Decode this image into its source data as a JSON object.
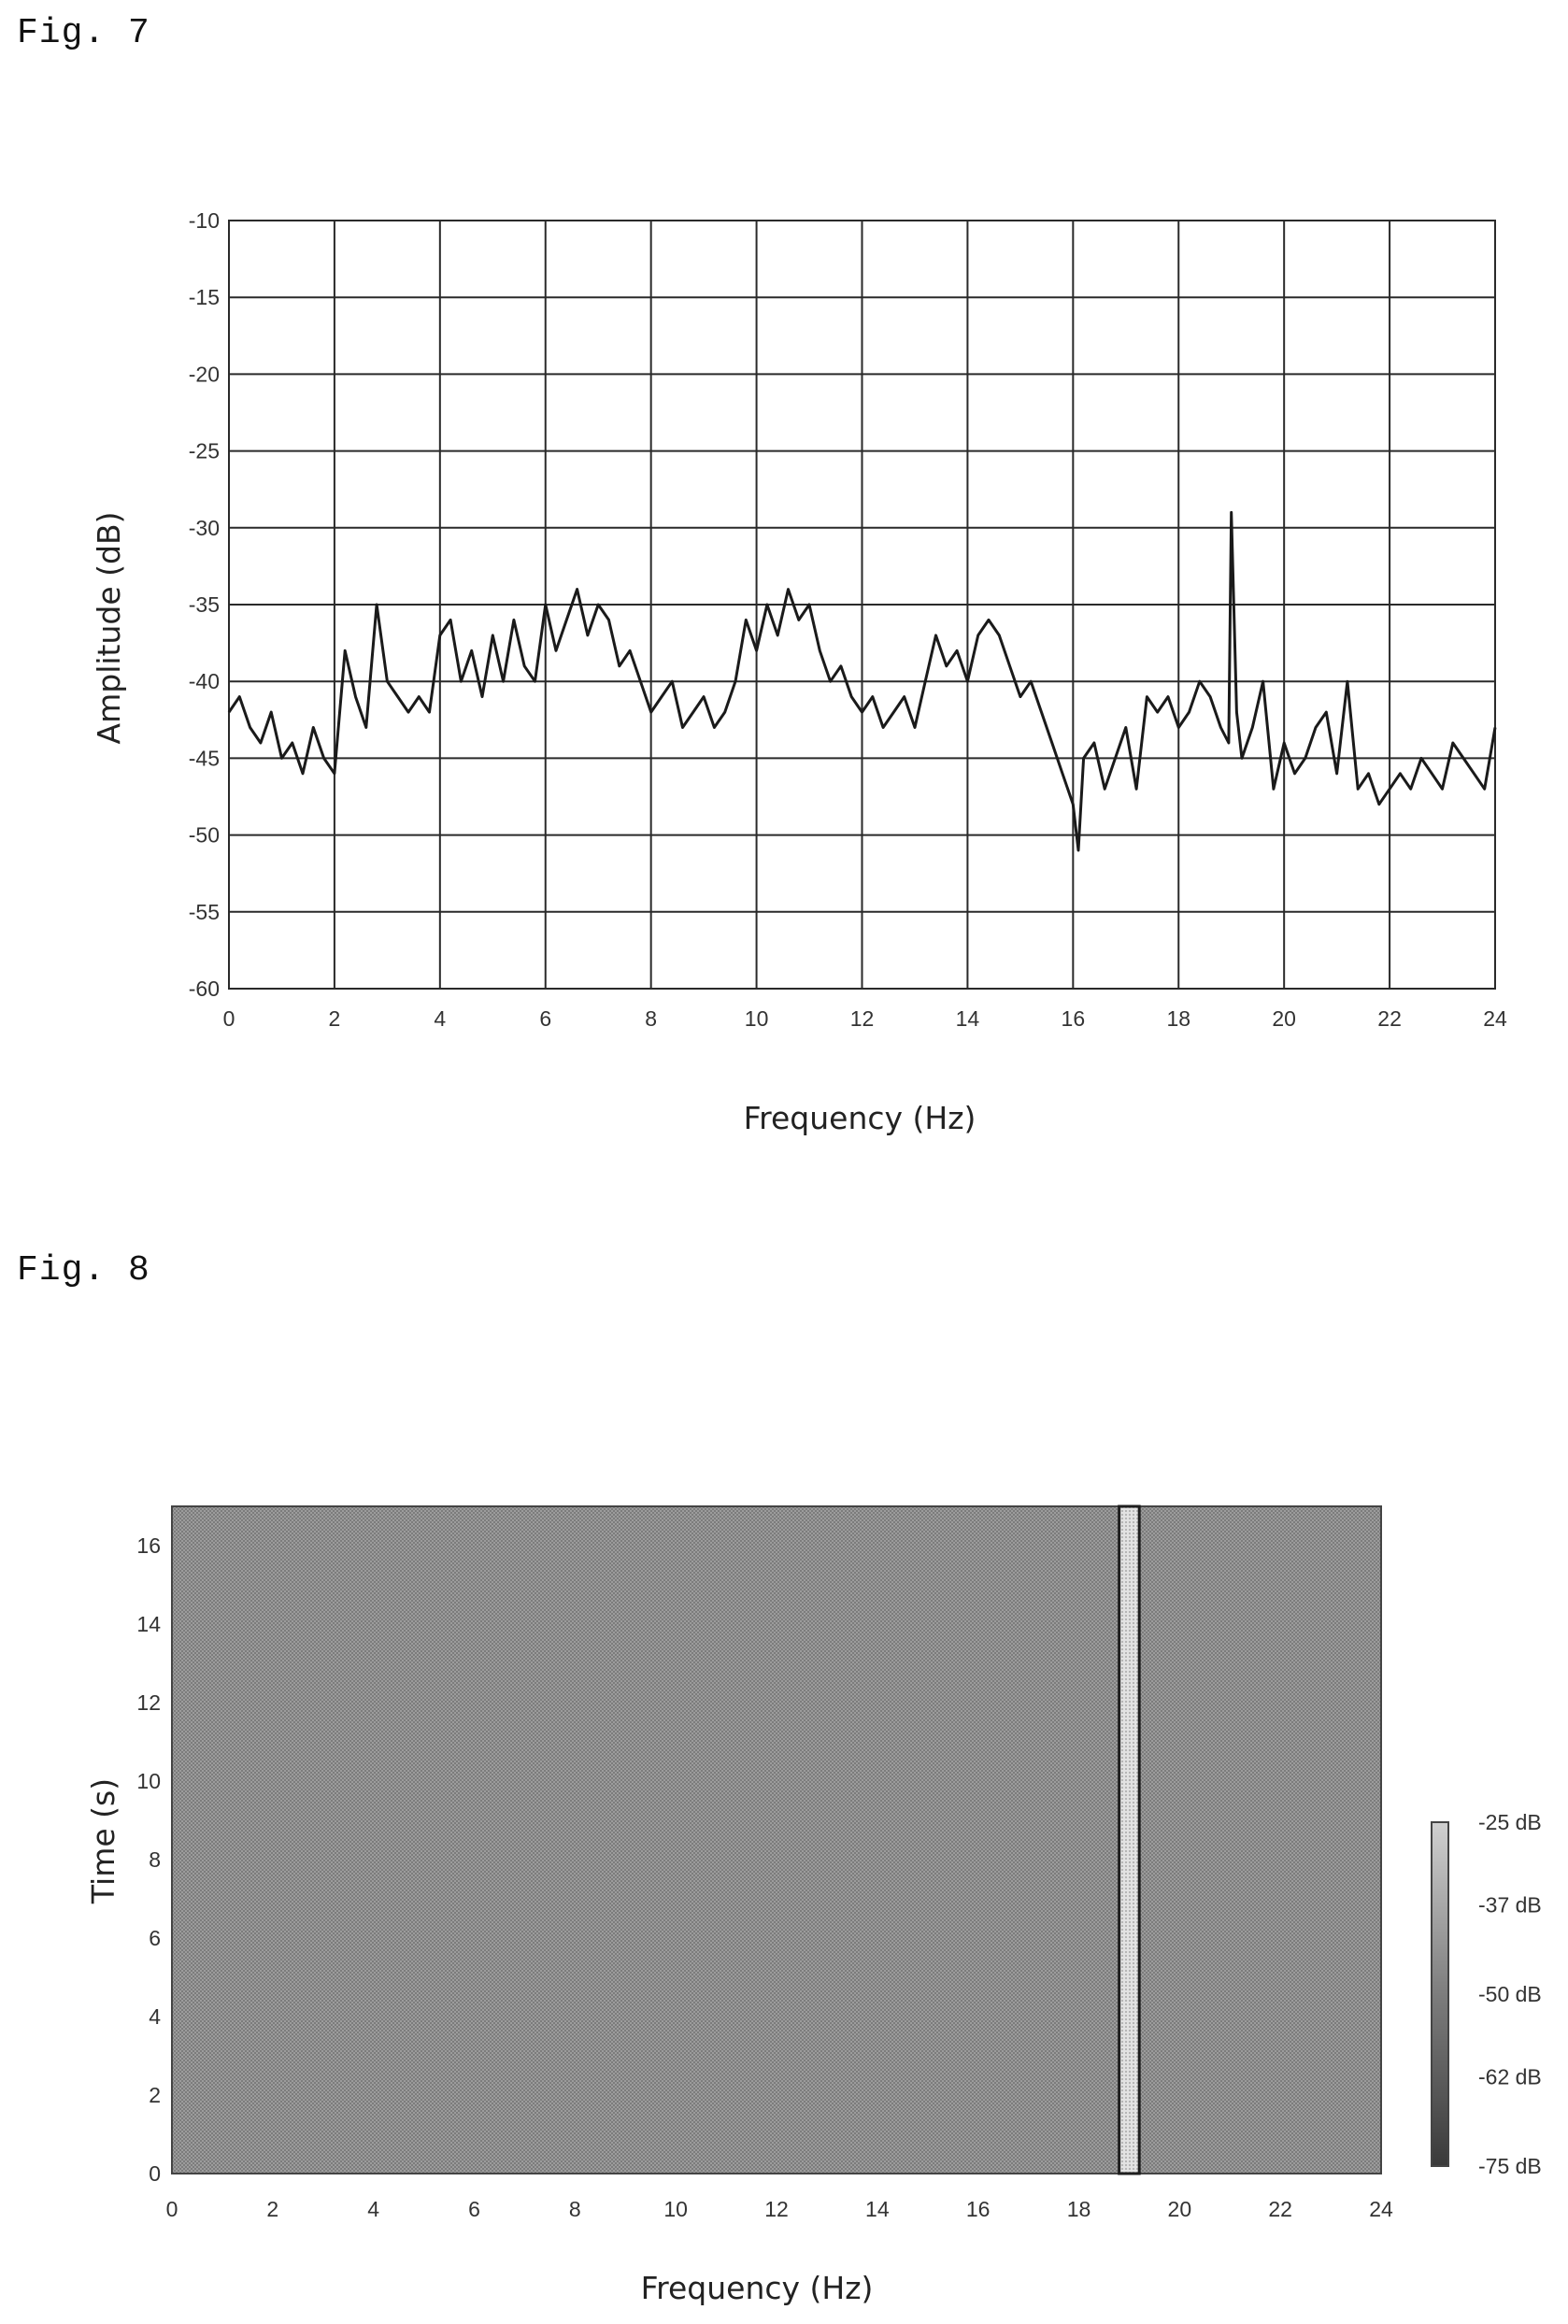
{
  "figures": {
    "fig7_label": "Fig. 7",
    "fig8_label": "Fig. 8"
  },
  "chart_data": [
    {
      "type": "line",
      "figure": "Fig. 7",
      "xlabel": "Frequency (Hz)",
      "ylabel": "Amplitude (dB)",
      "xlim": [
        0,
        24
      ],
      "ylim": [
        -60,
        -10
      ],
      "x_ticks": [
        0,
        2,
        4,
        6,
        8,
        10,
        12,
        14,
        16,
        18,
        20,
        22,
        24
      ],
      "y_ticks": [
        -10,
        -15,
        -20,
        -25,
        -30,
        -35,
        -40,
        -45,
        -50,
        -55,
        -60
      ],
      "grid": true,
      "line_color": "#1a1a1a",
      "series": [
        {
          "x": [
            0,
            0.2,
            0.4,
            0.6,
            0.8,
            1.0,
            1.2,
            1.4,
            1.6,
            1.8,
            2.0,
            2.2,
            2.4,
            2.6,
            2.8,
            3.0,
            3.2,
            3.4,
            3.6,
            3.8,
            4.0,
            4.2,
            4.4,
            4.6,
            4.8,
            5.0,
            5.2,
            5.4,
            5.6,
            5.8,
            6.0,
            6.2,
            6.4,
            6.6,
            6.8,
            7.0,
            7.2,
            7.4,
            7.6,
            7.8,
            8.0,
            8.2,
            8.4,
            8.6,
            8.8,
            9.0,
            9.2,
            9.4,
            9.6,
            9.8,
            10.0,
            10.2,
            10.4,
            10.6,
            10.8,
            11.0,
            11.2,
            11.4,
            11.6,
            11.8,
            12.0,
            12.2,
            12.4,
            12.6,
            12.8,
            13.0,
            13.2,
            13.4,
            13.6,
            13.8,
            14.0,
            14.2,
            14.4,
            14.6,
            14.8,
            15.0,
            15.2,
            15.4,
            15.6,
            15.8,
            16.0,
            16.1,
            16.2,
            16.4,
            16.6,
            16.8,
            17.0,
            17.2,
            17.4,
            17.6,
            17.8,
            18.0,
            18.2,
            18.4,
            18.6,
            18.8,
            18.95,
            19.0,
            19.1,
            19.2,
            19.4,
            19.6,
            19.8,
            20.0,
            20.2,
            20.4,
            20.6,
            20.8,
            21.0,
            21.2,
            21.4,
            21.6,
            21.8,
            22.0,
            22.2,
            22.4,
            22.6,
            22.8,
            23.0,
            23.2,
            23.4,
            23.6,
            23.8,
            24.0
          ],
          "values": [
            -42,
            -41,
            -43,
            -44,
            -42,
            -45,
            -44,
            -46,
            -43,
            -45,
            -46,
            -38,
            -41,
            -43,
            -35,
            -40,
            -41,
            -42,
            -41,
            -42,
            -37,
            -36,
            -40,
            -38,
            -41,
            -37,
            -40,
            -36,
            -39,
            -40,
            -35,
            -38,
            -36,
            -34,
            -37,
            -35,
            -36,
            -39,
            -38,
            -40,
            -42,
            -41,
            -40,
            -43,
            -42,
            -41,
            -43,
            -42,
            -40,
            -36,
            -38,
            -35,
            -37,
            -34,
            -36,
            -35,
            -38,
            -40,
            -39,
            -41,
            -42,
            -41,
            -43,
            -42,
            -41,
            -43,
            -40,
            -37,
            -39,
            -38,
            -40,
            -37,
            -36,
            -37,
            -39,
            -41,
            -40,
            -42,
            -44,
            -46,
            -48,
            -51,
            -45,
            -44,
            -47,
            -45,
            -43,
            -47,
            -41,
            -42,
            -41,
            -43,
            -42,
            -40,
            -41,
            -43,
            -44,
            -29,
            -42,
            -45,
            -43,
            -40,
            -47,
            -44,
            -46,
            -45,
            -43,
            -42,
            -46,
            -40,
            -47,
            -46,
            -48,
            -47,
            -46,
            -47,
            -45,
            -46,
            -47,
            -44,
            -45,
            -46,
            -47,
            -43
          ]
        }
      ]
    },
    {
      "type": "heatmap",
      "figure": "Fig. 8",
      "xlabel": "Frequency (Hz)",
      "ylabel": "Time (s)",
      "xlim": [
        0,
        24
      ],
      "ylim": [
        0,
        17
      ],
      "x_ticks": [
        0,
        2,
        4,
        6,
        8,
        10,
        12,
        14,
        16,
        18,
        20,
        22,
        24
      ],
      "y_ticks": [
        0,
        2,
        4,
        6,
        8,
        10,
        12,
        14,
        16
      ],
      "background_level_db": -50,
      "highlight_band": {
        "x_start": 18.8,
        "x_end": 19.2,
        "level_db": -25
      },
      "colorbar": {
        "labels": [
          "-25 dB",
          "-37 dB",
          "-50 dB",
          "-62 dB",
          "-75 dB"
        ],
        "values": [
          -25,
          -37,
          -50,
          -62,
          -75
        ]
      },
      "colors": {
        "background": "#8e8e8e",
        "band": "#d6d6d6",
        "band_edge": "#1e1e1e"
      }
    }
  ]
}
